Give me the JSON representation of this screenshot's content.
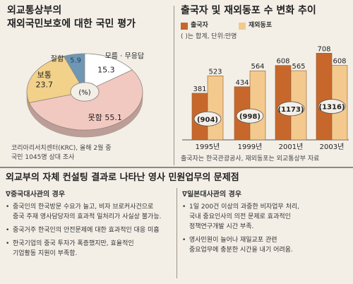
{
  "chart_data": [
    {
      "type": "pie",
      "title": "외교통상부의\n재외국민보호에 대한 국민 평가",
      "center_label": "(%)",
      "slices": [
        {
          "name": "잘함",
          "value": 5.9,
          "color": "#6e97b6"
        },
        {
          "name": "모름 · 무응답",
          "value": 15.3,
          "color": "#ffffff"
        },
        {
          "name": "못함",
          "value": 55.1,
          "color": "#f2c9c1"
        },
        {
          "name": "보통",
          "value": 23.7,
          "color": "#f2d18a"
        }
      ],
      "source": "코리아리서치센터(KRC), 올해 2월 중\n국민 1045명 상대 조사"
    },
    {
      "type": "bar",
      "title": "출국자 및 재외동포 수 변화 추이",
      "note": "( )는 합계, 단위:만명",
      "categories": [
        "1995년",
        "1999년",
        "2001년",
        "2003년"
      ],
      "series": [
        {
          "name": "출국자",
          "values": [
            381,
            434,
            608,
            708
          ],
          "color": "#c8672c"
        },
        {
          "name": "재외동포",
          "values": [
            523,
            564,
            565,
            608
          ],
          "color": "#f3c98e"
        }
      ],
      "totals": [
        "(904)",
        "(998)",
        "(1173)",
        "(1316)"
      ],
      "ylim": [
        0,
        750
      ],
      "source": "출국자는 한국관광공사, 재외동포는 외교통상부 자료"
    }
  ],
  "bottom": {
    "title": "외교부의 자체 컨설팅 결과로 나타난 영사 민원업무의 문제점",
    "left": {
      "heading": "∇중국대사관의 경우",
      "items": [
        "중국인의 한국방문 수요가 늘고, 비자 브로커사건으로\n중국 주재 영사담당자의 효과적 일처리가 사실상 불가능.",
        "중국거주 한국인의 안전문제에 대한 효과적인 대응 미흡",
        "한국기업의 중국 투자가 폭증했지만, 효율적인\n기업활동 지원이 부족함."
      ]
    },
    "right": {
      "heading": "∇일본대사관의 경우",
      "items": [
        "1일 200건 이상의 과중한 비자업무 처리,\n국내 중요인사의 의전 문제로 효과적인\n정책연구개발 시간 부족.",
        "영사민원이 늘어나 재일교포 관련\n중요업무에 충분한 시간을 내기 어려움."
      ]
    }
  }
}
